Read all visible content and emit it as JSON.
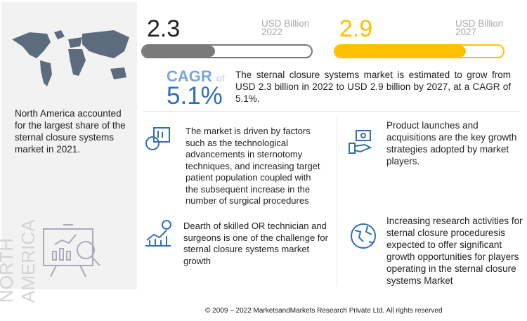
{
  "left_panel": {
    "region": "NORTH AMERICA",
    "text": "North America accounted for the largest share of the sternal closure systems market in 2021."
  },
  "market_2022": {
    "value": "2.3",
    "unit": "USD Billion",
    "year": "2022",
    "bar_fill_percent": 43
  },
  "market_2027": {
    "value": "2.9",
    "unit": "USD Billion",
    "year": "2027",
    "bar_fill_percent": 78
  },
  "cagr": {
    "label": "CAGR",
    "of": "of",
    "value": "5.1%"
  },
  "summary": "The sternal closure systems market is estimated to grow from USD 2.3 billion in 2022 to USD 2.9 billion by 2027, at a CAGR of 5.1%.",
  "drivers": "The market is driven by factors such as the technological advancements in sternotomy techniques, and increasing target patient population coupled with the subsequent increase in the number of surgical procedures",
  "challenge": "Dearth of skilled OR technician and surgeons is one of the challenge for sternal closure systems market growth",
  "strategies": "Product launches and acquisitions are the key growth strategies adopted by market players.",
  "opportunity": "Increasing research activities for sternal closure proceduresis expected to offer significant growth opportunities for players operating in the sternal closure systems Market",
  "footer": "© 2009 – 2022 MarketsandMarkets Research Private Ltd. All rights reserved",
  "colors": {
    "gray_bar": "#7a7a7a",
    "yellow_bar": "#ffc000",
    "cagr_blue": "#2f6fb3"
  }
}
